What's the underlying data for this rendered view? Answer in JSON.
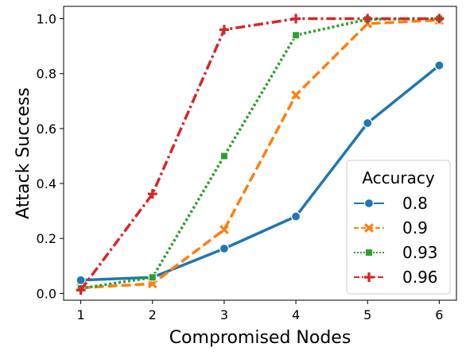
{
  "chart_data": {
    "type": "line",
    "xlabel": "Compromised Nodes",
    "ylabel": "Attack Success",
    "x": [
      1,
      2,
      3,
      4,
      5,
      6
    ],
    "xlim": [
      0.76,
      6.24
    ],
    "ylim": [
      -0.025,
      1.045
    ],
    "xticks": [
      "1",
      "2",
      "3",
      "4",
      "5",
      "6"
    ],
    "yticks": [
      "0.0",
      "0.2",
      "0.4",
      "0.6",
      "0.8",
      "1.0"
    ],
    "grid": false,
    "legend": {
      "title": "Accuracy",
      "placement": "lower-right"
    },
    "series": [
      {
        "name": "0.8",
        "color": "#1f77b4",
        "dash": "solid",
        "marker": "circle",
        "values": [
          0.048,
          0.058,
          0.163,
          0.28,
          0.62,
          0.83
        ]
      },
      {
        "name": "0.9",
        "color": "#ff7f0e",
        "dash": "dashed",
        "marker": "x",
        "values": [
          0.02,
          0.035,
          0.232,
          0.722,
          0.982,
          0.995
        ]
      },
      {
        "name": "0.93",
        "color": "#2ca02c",
        "dash": "dotted",
        "marker": "square",
        "values": [
          0.018,
          0.058,
          0.5,
          0.94,
          0.998,
          1.0
        ]
      },
      {
        "name": "0.96",
        "color": "#d62728",
        "dash": "dashdot",
        "marker": "plus",
        "values": [
          0.012,
          0.362,
          0.96,
          1.0,
          1.0,
          1.0
        ]
      }
    ]
  }
}
